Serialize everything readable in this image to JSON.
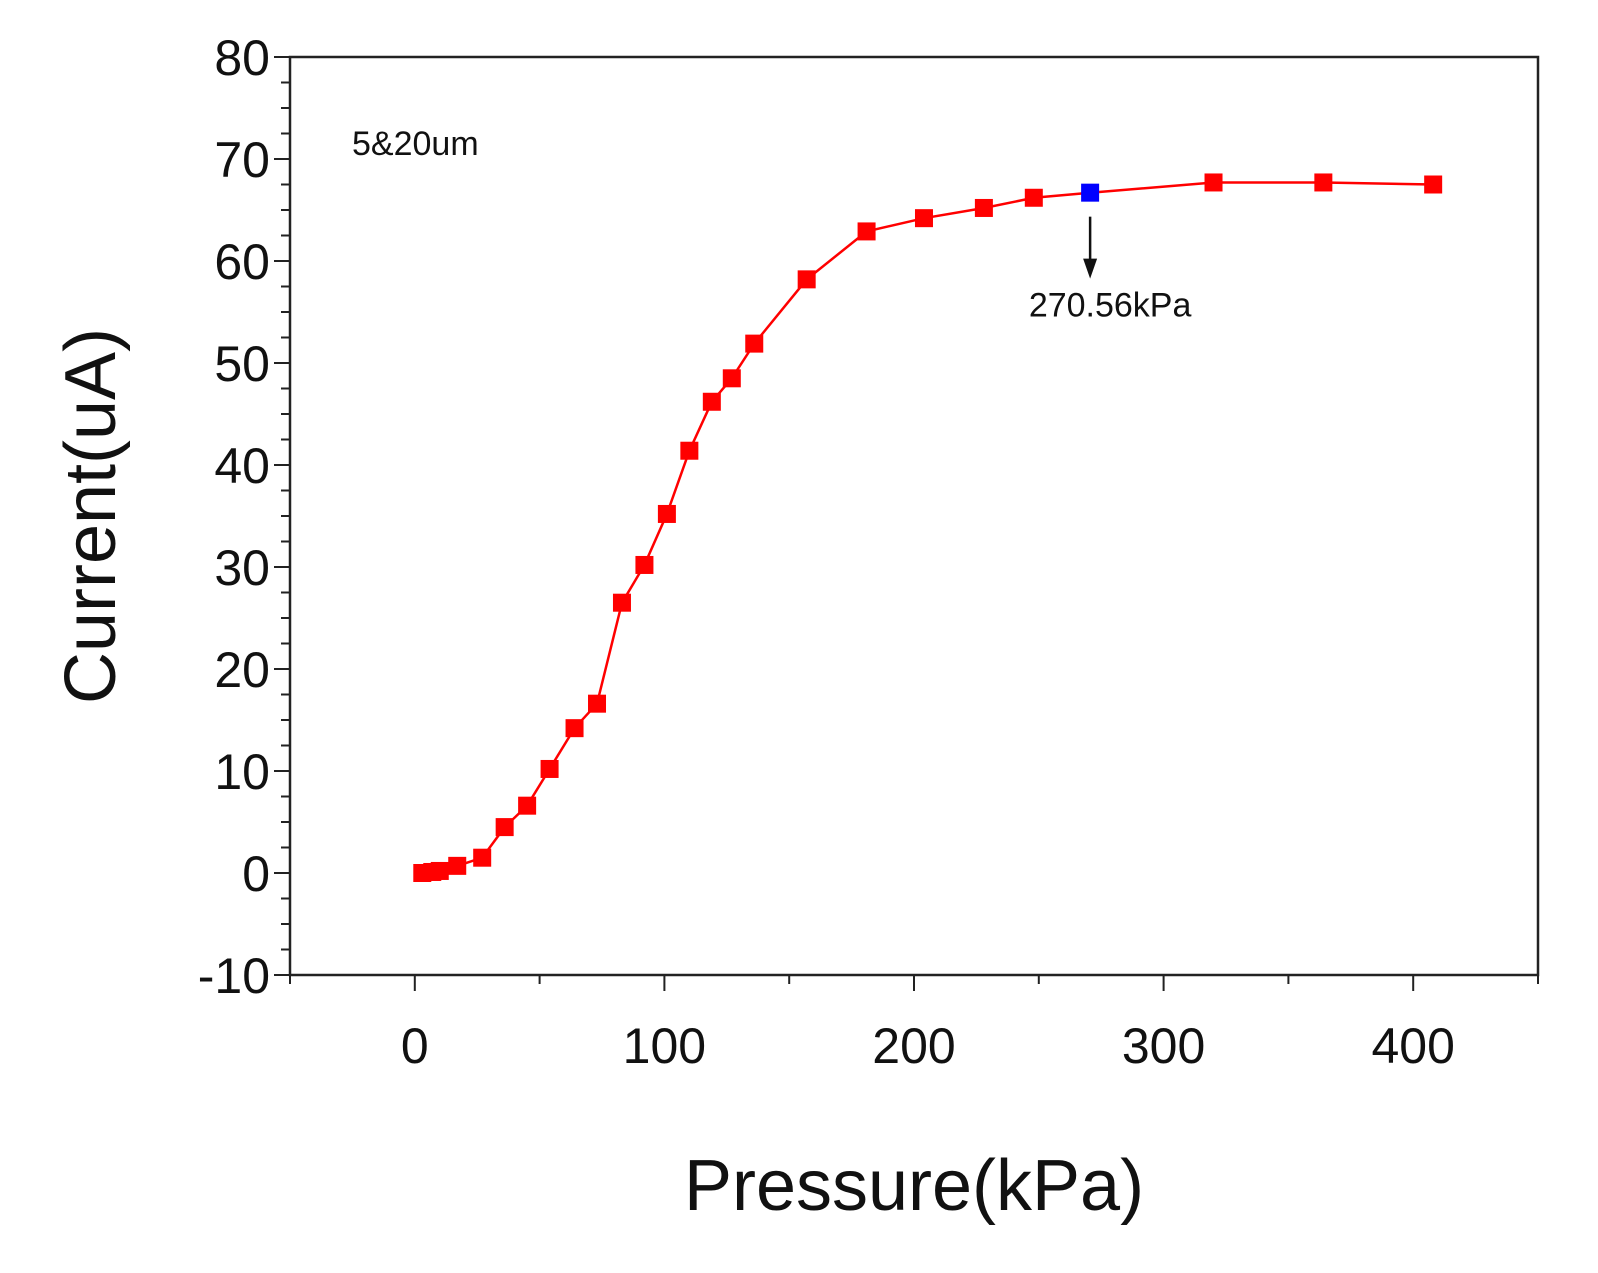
{
  "chart_data": {
    "type": "line",
    "xlabel": "Pressure(kPa)",
    "ylabel": "Current(uA)",
    "xlim": [
      -50,
      450
    ],
    "ylim": [
      -10,
      80
    ],
    "xticks": [
      0,
      100,
      200,
      300,
      400
    ],
    "xtick_labels": [
      "0",
      "100",
      "200",
      "300",
      "400"
    ],
    "yticks": [
      -10,
      0,
      10,
      20,
      30,
      40,
      50,
      60,
      70,
      80
    ],
    "ytick_labels": [
      "-10",
      "0",
      "10",
      "20",
      "30",
      "40",
      "50",
      "60",
      "70",
      "80"
    ],
    "grid": false,
    "series": [
      {
        "name": "5&20um",
        "color": "#ff0000",
        "marker": "square",
        "x": [
          3,
          7,
          10,
          17,
          27,
          36,
          45,
          54,
          64,
          73,
          83,
          92,
          101,
          110,
          119,
          127,
          136,
          157,
          181,
          204,
          228,
          248,
          270.56,
          320,
          364,
          408
        ],
        "y": [
          0.0,
          0.1,
          0.2,
          0.7,
          1.5,
          4.5,
          6.6,
          10.2,
          14.2,
          16.6,
          26.5,
          30.2,
          35.2,
          41.4,
          46.2,
          48.5,
          51.9,
          58.2,
          62.9,
          64.2,
          65.2,
          66.2,
          66.7,
          67.7,
          67.7,
          67.5
        ]
      }
    ],
    "highlight": {
      "x": 270.56,
      "y": 66.7,
      "color": "#0000ff",
      "label": "270.56kPa"
    },
    "annotations": [
      {
        "text": "5&20um",
        "x": 0,
        "y": 73
      }
    ]
  }
}
